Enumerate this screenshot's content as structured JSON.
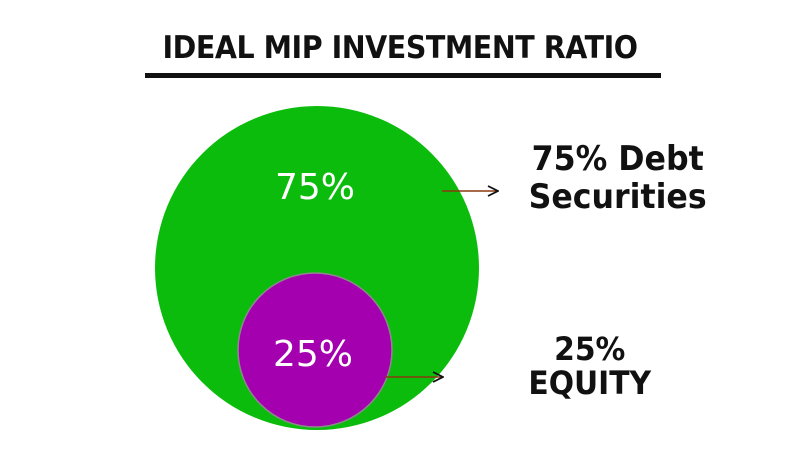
{
  "title": "IDEAL MIP INVESTMENT RATIO",
  "colors": {
    "outer_circle": "#0cbc0c",
    "inner_circle": "#a500b0",
    "text_dark": "#111111",
    "text_light": "#ffffff",
    "arrow": "#111111"
  },
  "outer": {
    "percent": "75%",
    "label_line1": "75% Debt",
    "label_line2": "Securities"
  },
  "inner": {
    "percent": "25%",
    "label_line1": "25%",
    "label_line2": "EQUITY"
  },
  "chart_data": {
    "type": "nested-circle",
    "title": "IDEAL MIP INVESTMENT RATIO",
    "segments": [
      {
        "name": "Debt Securities",
        "value": 75,
        "color": "#0cbc0c"
      },
      {
        "name": "EQUITY",
        "value": 25,
        "color": "#a500b0"
      }
    ]
  }
}
